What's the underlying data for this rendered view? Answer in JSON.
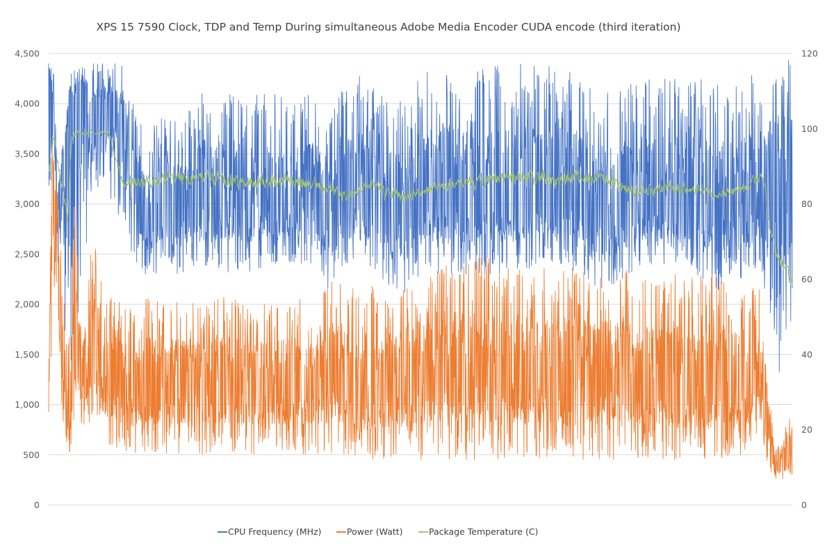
{
  "chart_data": {
    "type": "line",
    "title": "XPS 15 7590 Clock, TDP and Temp During simultaneous Adobe Media Encoder CUDA encode (third iteration)",
    "xlabel": "",
    "ylabel": "",
    "y_left": {
      "min": 0,
      "max": 4500,
      "step": 500,
      "tick_labels": [
        "0",
        "500",
        "1,000",
        "1,500",
        "2,000",
        "2,500",
        "3,000",
        "3,500",
        "4,000",
        "4,500"
      ]
    },
    "y_right": {
      "min": 0,
      "max": 120,
      "step": 20,
      "tick_labels": [
        "0",
        "20",
        "40",
        "60",
        "80",
        "100",
        "120"
      ]
    },
    "x_range": [
      0,
      1000
    ],
    "grid": "horizontal",
    "legend_position": "bottom",
    "series": [
      {
        "name": "CPU Frequency (MHz)",
        "axis": "left",
        "color": "#4472c4",
        "envelope": {
          "x": [
            0,
            8,
            12,
            30,
            45,
            60,
            80,
            100,
            120,
            130,
            150,
            180,
            200,
            250,
            280,
            300,
            330,
            360,
            378,
            390,
            420,
            450,
            480,
            500,
            530,
            570,
            600,
            630,
            680,
            720,
            740,
            800,
            850,
            900,
            940,
            960,
            980,
            994,
            1000
          ],
          "low": [
            2500,
            3400,
            2400,
            1000,
            2200,
            3200,
            3100,
            2800,
            2300,
            2300,
            2300,
            2300,
            2400,
            2300,
            2300,
            2400,
            2400,
            2400,
            2100,
            2300,
            2400,
            2200,
            2100,
            2300,
            2300,
            2300,
            2300,
            2300,
            2400,
            2300,
            2100,
            2400,
            2400,
            2100,
            2300,
            2300,
            900,
            900,
            1600
          ],
          "high": [
            4400,
            4300,
            3200,
            4300,
            4400,
            4400,
            4400,
            4400,
            4000,
            3700,
            3900,
            3800,
            4100,
            4100,
            4100,
            4100,
            4100,
            4100,
            3800,
            4100,
            4300,
            4100,
            4000,
            4300,
            4400,
            4300,
            4400,
            4400,
            4400,
            4300,
            4100,
            4300,
            4300,
            4200,
            4300,
            4300,
            4500,
            4500,
            4300
          ],
          "mid": [
            4400,
            3700,
            3000,
            4000,
            4100,
            3900,
            3900,
            3800,
            2950,
            2800,
            2950,
            2900,
            3100,
            3000,
            2900,
            2950,
            3000,
            3000,
            2800,
            2950,
            3050,
            2900,
            2850,
            2950,
            3100,
            2950,
            3050,
            3000,
            3100,
            3000,
            2800,
            2950,
            2950,
            2850,
            2950,
            3000,
            3300,
            3300,
            3300
          ]
        }
      },
      {
        "name": "Power (Watt)",
        "axis": "left",
        "color": "#ed7d31",
        "envelope": {
          "x": [
            0,
            5,
            10,
            18,
            28,
            35,
            45,
            60,
            70,
            80,
            100,
            150,
            200,
            250,
            300,
            330,
            360,
            380,
            400,
            420,
            450,
            480,
            500,
            530,
            580,
            620,
            680,
            720,
            760,
            800,
            850,
            900,
            940,
            960,
            975,
            985,
            1000
          ],
          "low": [
            600,
            1900,
            1500,
            800,
            500,
            800,
            700,
            900,
            800,
            600,
            500,
            500,
            500,
            500,
            500,
            500,
            500,
            500,
            500,
            450,
            450,
            450,
            450,
            450,
            450,
            450,
            450,
            450,
            450,
            450,
            450,
            450,
            500,
            550,
            250,
            250,
            300
          ],
          "high": [
            1300,
            3600,
            3300,
            2600,
            1700,
            3200,
            1900,
            2800,
            2300,
            2100,
            2000,
            2100,
            2000,
            2100,
            2000,
            2100,
            2000,
            2300,
            2200,
            2300,
            2100,
            2200,
            2300,
            2400,
            2500,
            2400,
            2400,
            2400,
            2400,
            2300,
            2300,
            2300,
            2200,
            2200,
            600,
            600,
            1100
          ],
          "mid": [
            1200,
            3400,
            2800,
            1600,
            700,
            1500,
            1250,
            1600,
            1400,
            1200,
            1150,
            1200,
            1150,
            1200,
            1150,
            1200,
            1150,
            1250,
            1200,
            1050,
            1150,
            1200,
            1250,
            1300,
            1300,
            1250,
            1250,
            1200,
            1200,
            1150,
            1150,
            1150,
            1200,
            1200,
            400,
            400,
            450
          ]
        }
      },
      {
        "name": "Package Temperature (C)",
        "axis": "right",
        "color": "#a5c46f",
        "envelope": {
          "x": [
            0,
            5,
            10,
            15,
            20,
            25,
            30,
            40,
            60,
            80,
            100,
            130,
            160,
            200,
            250,
            300,
            330,
            370,
            390,
            400,
            420,
            440,
            450,
            480,
            500,
            530,
            580,
            620,
            660,
            700,
            740,
            760,
            780,
            800,
            840,
            870,
            900,
            940,
            955,
            960,
            970,
            980,
            990,
            1000
          ],
          "low": [
            85,
            95,
            90,
            84,
            78,
            70,
            95,
            98,
            98,
            98,
            83,
            83,
            84,
            84,
            82,
            82,
            82,
            82,
            80,
            79,
            82,
            83,
            80,
            79,
            81,
            82,
            83,
            84,
            83,
            83,
            84,
            82,
            79,
            81,
            81,
            81,
            80,
            82,
            84,
            84,
            70,
            62,
            60,
            56
          ],
          "high": [
            95,
            100,
            98,
            90,
            85,
            80,
            100,
            100,
            100,
            100,
            88,
            89,
            90,
            91,
            89,
            90,
            89,
            88,
            86,
            84,
            86,
            88,
            86,
            85,
            86,
            87,
            89,
            91,
            91,
            91,
            90,
            89,
            86,
            87,
            87,
            86,
            85,
            87,
            90,
            92,
            76,
            68,
            66,
            62
          ],
          "mid": [
            90,
            98,
            95,
            87,
            82,
            75,
            98,
            99,
            99,
            99,
            85,
            86,
            87,
            88,
            86,
            86,
            86,
            85,
            83,
            81,
            84,
            85,
            83,
            82,
            83,
            85,
            86,
            88,
            87,
            87,
            87,
            86,
            83,
            84,
            84,
            84,
            82,
            85,
            87,
            88,
            73,
            65,
            63,
            58
          ]
        }
      }
    ]
  }
}
